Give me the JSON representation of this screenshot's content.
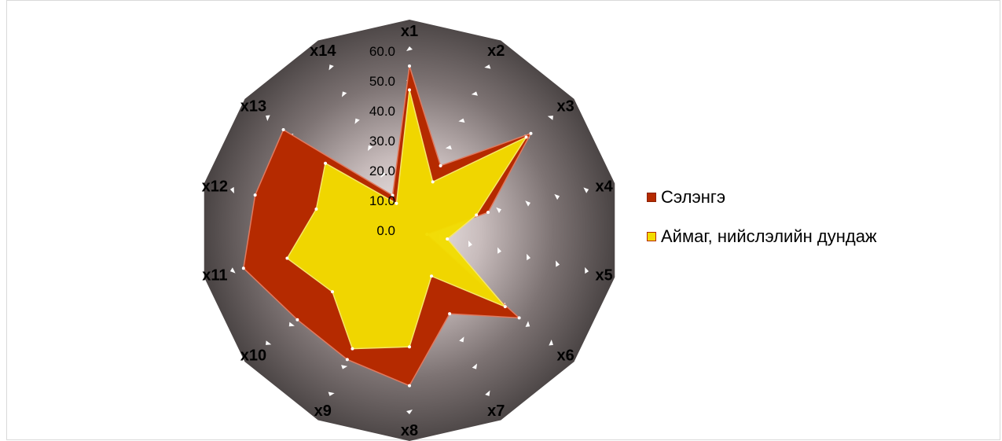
{
  "chart_data": {
    "type": "radar",
    "title": "",
    "categories": [
      "x1",
      "x2",
      "x3",
      "x4",
      "x5",
      "x6",
      "x7",
      "x8",
      "x9",
      "x10",
      "x11",
      "x12",
      "x13",
      "x14"
    ],
    "r_ticks": [
      "0.0",
      "10.0",
      "20.0",
      "30.0",
      "40.0",
      "50.0",
      "60.0"
    ],
    "r_range": [
      0,
      60
    ],
    "series": [
      {
        "name": "Сэлэнгэ",
        "color": "#b52a00",
        "values": [
          55.0,
          24.0,
          52.0,
          27.0,
          6.0,
          47.0,
          31.0,
          52.0,
          48.0,
          48.0,
          57.0,
          53.0,
          54.0,
          13.0
        ]
      },
      {
        "name": "Аймаг, нийслэлийн дундаж",
        "color": "#f2dc00",
        "values": [
          47.0,
          18.0,
          50.0,
          23.0,
          13.0,
          41.0,
          17.0,
          39.0,
          44.0,
          33.0,
          42.0,
          32.0,
          36.0,
          10.0
        ]
      }
    ],
    "background": "radial gradient from #f3ecec (center) to #4b4545 (edge)",
    "legend_position": "right"
  }
}
